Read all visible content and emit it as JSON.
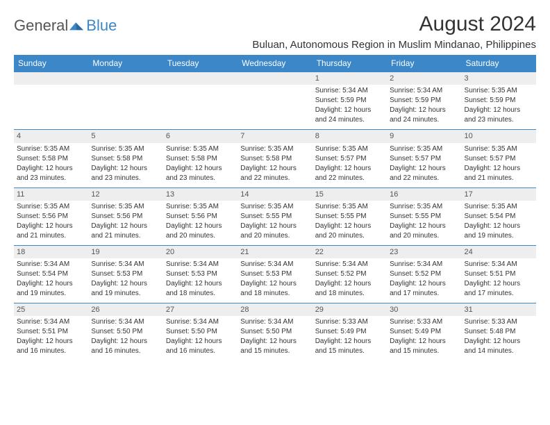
{
  "brand": {
    "name1": "General",
    "name2": "Blue",
    "accent": "#3b87c8"
  },
  "title": "August 2024",
  "location": "Buluan, Autonomous Region in Muslim Mindanao, Philippines",
  "colors": {
    "header_bg": "#3b87c8",
    "header_text": "#ffffff",
    "daynum_bg": "#eeeeee",
    "border": "#3b87c8",
    "text": "#333333",
    "background": "#ffffff"
  },
  "fonts": {
    "title_size": 30,
    "location_size": 15,
    "dayheader_size": 12,
    "body_size": 10
  },
  "day_headers": [
    "Sunday",
    "Monday",
    "Tuesday",
    "Wednesday",
    "Thursday",
    "Friday",
    "Saturday"
  ],
  "weeks": [
    [
      null,
      null,
      null,
      null,
      {
        "n": "1",
        "sr": "Sunrise: 5:34 AM",
        "ss": "Sunset: 5:59 PM",
        "d1": "Daylight: 12 hours",
        "d2": "and 24 minutes."
      },
      {
        "n": "2",
        "sr": "Sunrise: 5:34 AM",
        "ss": "Sunset: 5:59 PM",
        "d1": "Daylight: 12 hours",
        "d2": "and 24 minutes."
      },
      {
        "n": "3",
        "sr": "Sunrise: 5:35 AM",
        "ss": "Sunset: 5:59 PM",
        "d1": "Daylight: 12 hours",
        "d2": "and 23 minutes."
      }
    ],
    [
      {
        "n": "4",
        "sr": "Sunrise: 5:35 AM",
        "ss": "Sunset: 5:58 PM",
        "d1": "Daylight: 12 hours",
        "d2": "and 23 minutes."
      },
      {
        "n": "5",
        "sr": "Sunrise: 5:35 AM",
        "ss": "Sunset: 5:58 PM",
        "d1": "Daylight: 12 hours",
        "d2": "and 23 minutes."
      },
      {
        "n": "6",
        "sr": "Sunrise: 5:35 AM",
        "ss": "Sunset: 5:58 PM",
        "d1": "Daylight: 12 hours",
        "d2": "and 23 minutes."
      },
      {
        "n": "7",
        "sr": "Sunrise: 5:35 AM",
        "ss": "Sunset: 5:58 PM",
        "d1": "Daylight: 12 hours",
        "d2": "and 22 minutes."
      },
      {
        "n": "8",
        "sr": "Sunrise: 5:35 AM",
        "ss": "Sunset: 5:57 PM",
        "d1": "Daylight: 12 hours",
        "d2": "and 22 minutes."
      },
      {
        "n": "9",
        "sr": "Sunrise: 5:35 AM",
        "ss": "Sunset: 5:57 PM",
        "d1": "Daylight: 12 hours",
        "d2": "and 22 minutes."
      },
      {
        "n": "10",
        "sr": "Sunrise: 5:35 AM",
        "ss": "Sunset: 5:57 PM",
        "d1": "Daylight: 12 hours",
        "d2": "and 21 minutes."
      }
    ],
    [
      {
        "n": "11",
        "sr": "Sunrise: 5:35 AM",
        "ss": "Sunset: 5:56 PM",
        "d1": "Daylight: 12 hours",
        "d2": "and 21 minutes."
      },
      {
        "n": "12",
        "sr": "Sunrise: 5:35 AM",
        "ss": "Sunset: 5:56 PM",
        "d1": "Daylight: 12 hours",
        "d2": "and 21 minutes."
      },
      {
        "n": "13",
        "sr": "Sunrise: 5:35 AM",
        "ss": "Sunset: 5:56 PM",
        "d1": "Daylight: 12 hours",
        "d2": "and 20 minutes."
      },
      {
        "n": "14",
        "sr": "Sunrise: 5:35 AM",
        "ss": "Sunset: 5:55 PM",
        "d1": "Daylight: 12 hours",
        "d2": "and 20 minutes."
      },
      {
        "n": "15",
        "sr": "Sunrise: 5:35 AM",
        "ss": "Sunset: 5:55 PM",
        "d1": "Daylight: 12 hours",
        "d2": "and 20 minutes."
      },
      {
        "n": "16",
        "sr": "Sunrise: 5:35 AM",
        "ss": "Sunset: 5:55 PM",
        "d1": "Daylight: 12 hours",
        "d2": "and 20 minutes."
      },
      {
        "n": "17",
        "sr": "Sunrise: 5:35 AM",
        "ss": "Sunset: 5:54 PM",
        "d1": "Daylight: 12 hours",
        "d2": "and 19 minutes."
      }
    ],
    [
      {
        "n": "18",
        "sr": "Sunrise: 5:34 AM",
        "ss": "Sunset: 5:54 PM",
        "d1": "Daylight: 12 hours",
        "d2": "and 19 minutes."
      },
      {
        "n": "19",
        "sr": "Sunrise: 5:34 AM",
        "ss": "Sunset: 5:53 PM",
        "d1": "Daylight: 12 hours",
        "d2": "and 19 minutes."
      },
      {
        "n": "20",
        "sr": "Sunrise: 5:34 AM",
        "ss": "Sunset: 5:53 PM",
        "d1": "Daylight: 12 hours",
        "d2": "and 18 minutes."
      },
      {
        "n": "21",
        "sr": "Sunrise: 5:34 AM",
        "ss": "Sunset: 5:53 PM",
        "d1": "Daylight: 12 hours",
        "d2": "and 18 minutes."
      },
      {
        "n": "22",
        "sr": "Sunrise: 5:34 AM",
        "ss": "Sunset: 5:52 PM",
        "d1": "Daylight: 12 hours",
        "d2": "and 18 minutes."
      },
      {
        "n": "23",
        "sr": "Sunrise: 5:34 AM",
        "ss": "Sunset: 5:52 PM",
        "d1": "Daylight: 12 hours",
        "d2": "and 17 minutes."
      },
      {
        "n": "24",
        "sr": "Sunrise: 5:34 AM",
        "ss": "Sunset: 5:51 PM",
        "d1": "Daylight: 12 hours",
        "d2": "and 17 minutes."
      }
    ],
    [
      {
        "n": "25",
        "sr": "Sunrise: 5:34 AM",
        "ss": "Sunset: 5:51 PM",
        "d1": "Daylight: 12 hours",
        "d2": "and 16 minutes."
      },
      {
        "n": "26",
        "sr": "Sunrise: 5:34 AM",
        "ss": "Sunset: 5:50 PM",
        "d1": "Daylight: 12 hours",
        "d2": "and 16 minutes."
      },
      {
        "n": "27",
        "sr": "Sunrise: 5:34 AM",
        "ss": "Sunset: 5:50 PM",
        "d1": "Daylight: 12 hours",
        "d2": "and 16 minutes."
      },
      {
        "n": "28",
        "sr": "Sunrise: 5:34 AM",
        "ss": "Sunset: 5:50 PM",
        "d1": "Daylight: 12 hours",
        "d2": "and 15 minutes."
      },
      {
        "n": "29",
        "sr": "Sunrise: 5:33 AM",
        "ss": "Sunset: 5:49 PM",
        "d1": "Daylight: 12 hours",
        "d2": "and 15 minutes."
      },
      {
        "n": "30",
        "sr": "Sunrise: 5:33 AM",
        "ss": "Sunset: 5:49 PM",
        "d1": "Daylight: 12 hours",
        "d2": "and 15 minutes."
      },
      {
        "n": "31",
        "sr": "Sunrise: 5:33 AM",
        "ss": "Sunset: 5:48 PM",
        "d1": "Daylight: 12 hours",
        "d2": "and 14 minutes."
      }
    ]
  ]
}
